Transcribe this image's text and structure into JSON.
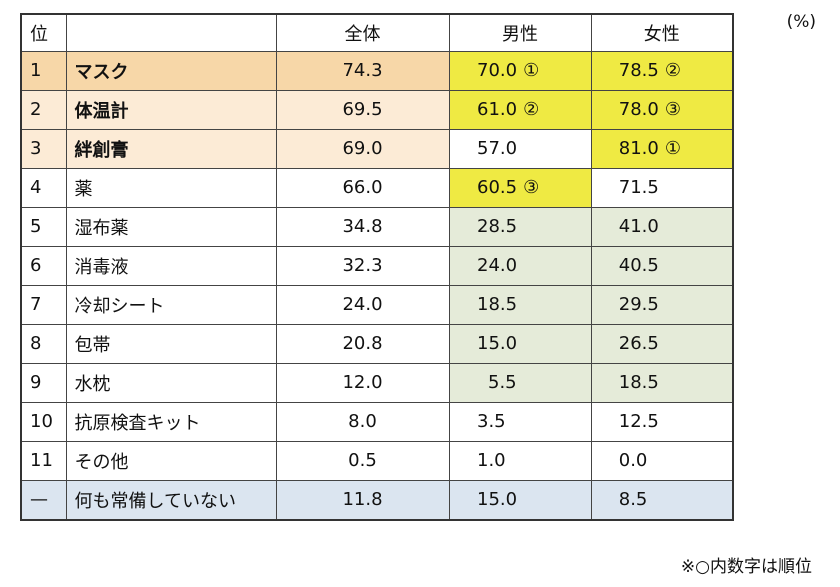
{
  "unit": "(%)",
  "note": "※○内数字は順位",
  "headers": {
    "rank": "位",
    "item": "",
    "all": "全体",
    "male": "男性",
    "female": "女性"
  },
  "rows": [
    {
      "rank": "1",
      "item": "マスク",
      "all": "74.3",
      "male": "70.0",
      "male_rank": "①",
      "female": "78.5",
      "female_rank": "②"
    },
    {
      "rank": "2",
      "item": "体温計",
      "all": "69.5",
      "male": "61.0",
      "male_rank": "②",
      "female": "78.0",
      "female_rank": "③"
    },
    {
      "rank": "3",
      "item": "絆創膏",
      "all": "69.0",
      "male": "57.0",
      "male_rank": "",
      "female": "81.0",
      "female_rank": "①"
    },
    {
      "rank": "4",
      "item": "薬",
      "all": "66.0",
      "male": "60.5",
      "male_rank": "③",
      "female": "71.5",
      "female_rank": ""
    },
    {
      "rank": "5",
      "item": "湿布薬",
      "all": "34.8",
      "male": "28.5",
      "male_rank": "",
      "female": "41.0",
      "female_rank": ""
    },
    {
      "rank": "6",
      "item": "消毒液",
      "all": "32.3",
      "male": "24.0",
      "male_rank": "",
      "female": "40.5",
      "female_rank": ""
    },
    {
      "rank": "7",
      "item": "冷却シート",
      "all": "24.0",
      "male": "18.5",
      "male_rank": "",
      "female": "29.5",
      "female_rank": ""
    },
    {
      "rank": "8",
      "item": "包帯",
      "all": "20.8",
      "male": "15.0",
      "male_rank": "",
      "female": "26.5",
      "female_rank": ""
    },
    {
      "rank": "9",
      "item": "水枕",
      "all": "12.0",
      "male": "5.5",
      "male_rank": "",
      "female": "18.5",
      "female_rank": ""
    },
    {
      "rank": "10",
      "item": "抗原検査キット",
      "all": "8.0",
      "male": "3.5",
      "male_rank": "",
      "female": "12.5",
      "female_rank": ""
    },
    {
      "rank": "11",
      "item": "その他",
      "all": "0.5",
      "male": "1.0",
      "male_rank": "",
      "female": "0.0",
      "female_rank": ""
    },
    {
      "rank": "—",
      "item": "何も常備していない",
      "all": "11.8",
      "male": "15.0",
      "male_rank": "",
      "female": "8.5",
      "female_rank": ""
    }
  ],
  "colors": {
    "top_rank_dark": "#f7d7a8",
    "top_rank_light": "#fcebd6",
    "highlight_yellow": "#efea43",
    "low_green": "#e5ebd9",
    "none_blue": "#dbe5f0"
  }
}
